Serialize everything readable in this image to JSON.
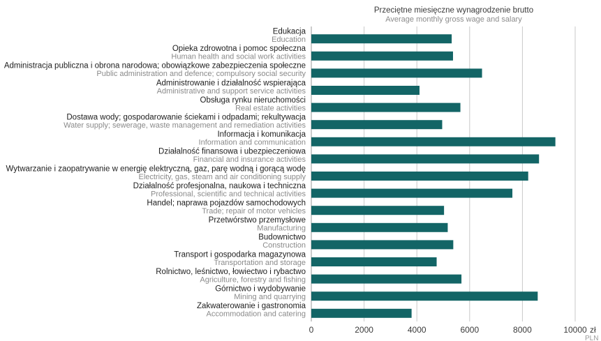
{
  "header": {
    "title_pl": "Przeciętne miesięczne wynagrodzenie brutto",
    "title_en": "Average monthly gross wage and salary"
  },
  "axis": {
    "unit_pl": "zł",
    "unit_en": "PLN"
  },
  "colors": {
    "bar": "#136566",
    "label_pl": "#1e1e1e",
    "label_en": "#8a8a8a",
    "grid": "#c8c8c8"
  },
  "chart_data": {
    "type": "bar",
    "orientation": "horizontal",
    "title": "Przeciętne miesięczne wynagrodzenie brutto / Average monthly gross wage and salary",
    "xlabel": "zł / PLN",
    "xlim": [
      0,
      10000
    ],
    "xticks": [
      0,
      2000,
      4000,
      6000,
      8000,
      10000
    ],
    "grid": true,
    "categories": [
      {
        "pl": "Edukacja",
        "en": "Education",
        "mark": false
      },
      {
        "pl": "Opieka zdrowotna i pomoc społeczna",
        "en": "Human health and social work activities",
        "mark": false
      },
      {
        "pl": "Administracja publiczna i obrona narodowa; obowiązkowe zabezpieczenia społeczne",
        "en": "Public administration and defence; compulsory social security",
        "mark": false
      },
      {
        "pl": "Administrowanie i działalność wspierająca",
        "en": "Administrative and support service activities",
        "mark": true
      },
      {
        "pl": "Obsługa rynku nieruchomości",
        "en": "Real estate activities",
        "mark": true
      },
      {
        "pl": "Dostawa wody; gospodarowanie ściekami i odpadami; rekultywacja",
        "en": "Water supply; sewerage, waste management and remediation activities",
        "mark": true
      },
      {
        "pl": "Informacja i komunikacja",
        "en": "Information and communication",
        "mark": false
      },
      {
        "pl": "Działalność finansowa i ubezpieczeniowa",
        "en": "Financial and insurance activities",
        "mark": false
      },
      {
        "pl": "Wytwarzanie i zaopatrywanie w energię elektryczną, gaz, parę wodną i gorącą wodę",
        "en": "Electricity, gas, steam and air conditioning supply",
        "mark": true
      },
      {
        "pl": "Działalność profesjonalna, naukowa i techniczna",
        "en": "Professional, scientific and technical activities",
        "mark": false
      },
      {
        "pl": "Handel; naprawa pojazdów samochodowych",
        "en": "Trade; repair of motor vehicles",
        "mark": true
      },
      {
        "pl": "Przetwórstwo przemysłowe",
        "en": "Manufacturing",
        "mark": false
      },
      {
        "pl": "Budownictwo",
        "en": "Construction",
        "mark": false
      },
      {
        "pl": "Transport i gospodarka magazynowa",
        "en": "Transportation and storage",
        "mark": false
      },
      {
        "pl": "Rolnictwo, leśnictwo, łowiectwo i rybactwo",
        "en": "Agriculture, forestry and fishing",
        "mark": false
      },
      {
        "pl": "Górnictwo i wydobywanie",
        "en": "Mining and quarrying",
        "mark": false
      },
      {
        "pl": "Zakwaterowanie i gastronomia",
        "en": "Accommodation and catering",
        "mark": true
      }
    ],
    "values": [
      5320,
      5370,
      6470,
      4100,
      5650,
      4960,
      9250,
      8630,
      8220,
      7620,
      5030,
      5170,
      5380,
      4750,
      5690,
      8580,
      3800
    ]
  }
}
